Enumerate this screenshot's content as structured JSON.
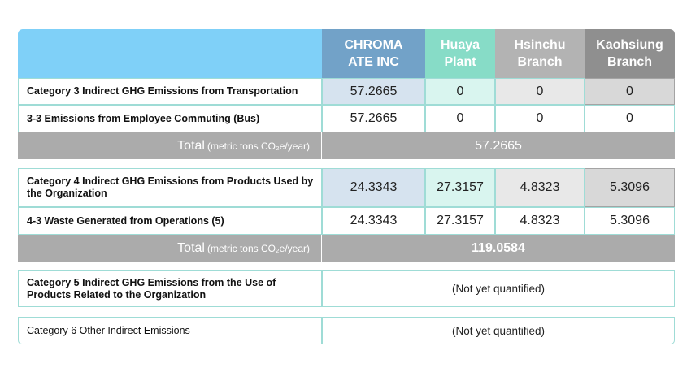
{
  "headers": {
    "chroma": "CHROMA ATE INC",
    "huaya": "Huaya Plant",
    "hsinchu": "Hsinchu Branch",
    "kaohsiung": "Kaohsiung Branch"
  },
  "colors": {
    "header_label": "#7fd0f8",
    "header_chroma": "#72a2c8",
    "header_huaya": "#87dcc7",
    "header_hsinchu": "#b3b3b3",
    "header_kaohsiung": "#8f8f8f",
    "row_chroma": "#d6e3ef",
    "row_huaya": "#d9f5ef",
    "row_hsinchu": "#e8e8e8",
    "row_kaohsiung": "#d8d8d8",
    "total": "#ababab",
    "border": "#9fdcd6"
  },
  "category3": {
    "title": "Category 3 Indirect GHG Emissions from Transportation",
    "values": [
      "57.2665",
      "0",
      "0",
      "0"
    ],
    "sub_label": "3-3 Emissions from Employee Commuting (Bus)",
    "sub_values": [
      "57.2665",
      "0",
      "0",
      "0"
    ],
    "total_label": "Total",
    "total_unit": "(metric tons CO₂e/year)",
    "total_value": "57.2665"
  },
  "category4": {
    "title": "Category 4 Indirect GHG Emissions from Products Used by the Organization",
    "values": [
      "24.3343",
      "27.3157",
      "4.8323",
      "5.3096"
    ],
    "sub_label": "4-3 Waste Generated from Operations (5)",
    "sub_values": [
      "24.3343",
      "27.3157",
      "4.8323",
      "5.3096"
    ],
    "total_label": "Total",
    "total_unit": "(metric tons CO₂e/year)",
    "total_value": "119.0584"
  },
  "category5": {
    "title": "Category 5 Indirect GHG Emissions from the Use of Products Related to the Organization",
    "value": "(Not yet quantified)"
  },
  "category6": {
    "title": "Category 6 Other Indirect Emissions",
    "value": "(Not yet quantified)"
  }
}
